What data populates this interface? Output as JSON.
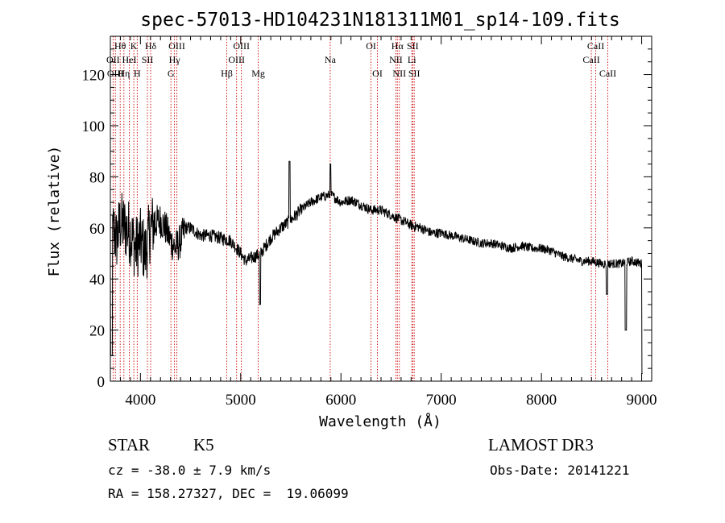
{
  "chart_data": {
    "type": "line",
    "title": "spec-57013-HD104231N181311M01_sp14-109.fits",
    "xlabel": "Wavelength (Å)",
    "ylabel": "Flux (relative)",
    "xlim": [
      3700,
      9100
    ],
    "ylim": [
      0,
      135
    ],
    "xticks": [
      4000,
      5000,
      6000,
      7000,
      8000,
      9000
    ],
    "yticks": [
      0,
      20,
      40,
      60,
      80,
      100,
      120
    ],
    "grid": false,
    "line_color": "#000000",
    "marker_color": "#cc0000",
    "spectrum_anchors": {
      "x": [
        3700,
        3730,
        3760,
        3800,
        3850,
        3900,
        3950,
        4000,
        4050,
        4100,
        4150,
        4200,
        4250,
        4300,
        4350,
        4400,
        4450,
        4500,
        4600,
        4700,
        4800,
        4900,
        5000,
        5050,
        5100,
        5200,
        5300,
        5400,
        5500,
        5600,
        5700,
        5800,
        5900,
        6000,
        6100,
        6200,
        6300,
        6400,
        6500,
        6600,
        6700,
        6800,
        6900,
        7000,
        7100,
        7200,
        7300,
        7400,
        7500,
        7600,
        7700,
        7800,
        7900,
        8000,
        8100,
        8200,
        8300,
        8400,
        8500,
        8600,
        8700,
        8800,
        8900,
        9000
      ],
      "y": [
        40,
        60,
        55,
        62,
        60,
        58,
        52,
        55,
        50,
        60,
        62,
        63,
        60,
        55,
        52,
        55,
        60,
        60,
        57,
        57,
        56,
        55,
        50,
        47,
        48,
        50,
        56,
        60,
        63,
        67,
        70,
        72,
        73,
        70,
        71,
        69,
        67,
        67,
        65,
        63,
        61,
        60,
        58,
        58,
        57,
        56,
        55,
        54,
        54,
        53,
        52,
        53,
        52,
        52,
        51,
        49,
        48,
        47,
        47,
        46,
        46,
        46,
        47,
        46
      ]
    },
    "line_markers": [
      {
        "label": "Hθ",
        "wavelength": 3798,
        "row": 0
      },
      {
        "label": "OII",
        "wavelength": 3727,
        "row": 1
      },
      {
        "label": "OIII",
        "wavelength": 3750,
        "row": 2
      },
      {
        "label": "Hη",
        "wavelength": 3835,
        "row": 2
      },
      {
        "label": "HeI",
        "wavelength": 3889,
        "row": 1
      },
      {
        "label": "K",
        "wavelength": 3934,
        "row": 0
      },
      {
        "label": "SII",
        "wavelength": 4070,
        "row": 1
      },
      {
        "label": "H",
        "wavelength": 3968,
        "row": 2
      },
      {
        "label": "Hδ",
        "wavelength": 4102,
        "row": 0
      },
      {
        "label": "OIII",
        "wavelength": 4363,
        "row": 0
      },
      {
        "label": "Hγ",
        "wavelength": 4340,
        "row": 1
      },
      {
        "label": "G",
        "wavelength": 4304,
        "row": 2
      },
      {
        "label": "Hβ",
        "wavelength": 4861,
        "row": 2
      },
      {
        "label": "OIII",
        "wavelength": 5007,
        "row": 0
      },
      {
        "label": "OIII",
        "wavelength": 4959,
        "row": 1
      },
      {
        "label": "Mg",
        "wavelength": 5175,
        "row": 2
      },
      {
        "label": "Na",
        "wavelength": 5893,
        "row": 1
      },
      {
        "label": "OI",
        "wavelength": 6300,
        "row": 0
      },
      {
        "label": "OI",
        "wavelength": 6364,
        "row": 2
      },
      {
        "label": "Hα",
        "wavelength": 6563,
        "row": 0
      },
      {
        "label": "NII",
        "wavelength": 6548,
        "row": 1
      },
      {
        "label": "NII",
        "wavelength": 6583,
        "row": 2
      },
      {
        "label": "SII",
        "wavelength": 6716,
        "row": 0
      },
      {
        "label": "Li",
        "wavelength": 6707,
        "row": 1
      },
      {
        "label": "SII",
        "wavelength": 6731,
        "row": 2
      },
      {
        "label": "CaII",
        "wavelength": 8542,
        "row": 0
      },
      {
        "label": "CaII",
        "wavelength": 8498,
        "row": 1
      },
      {
        "label": "CaII",
        "wavelength": 8662,
        "row": 2
      }
    ]
  },
  "info": {
    "object_class": "STAR",
    "subclass": "K5",
    "survey": "LAMOST DR3",
    "cz": "cz = -38.0 ± 7.9 km/s",
    "obs_date": "Obs-Date: 20141221",
    "coords": "RA = 158.27327, DEC =  19.06099"
  }
}
